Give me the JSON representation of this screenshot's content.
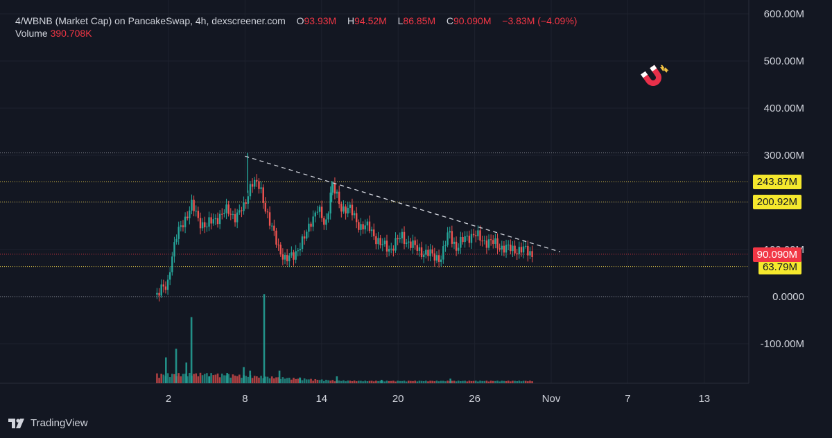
{
  "header": {
    "title": "4/WBNB (Market Cap) on PancakeSwap, 4h, dexscreener.com",
    "open_label": "O",
    "open_value": "93.93M",
    "high_label": "H",
    "high_value": "94.52M",
    "low_label": "L",
    "low_value": "86.85M",
    "close_label": "C",
    "close_value": "90.090M",
    "change": "−3.83M (−4.09%)",
    "volume_label": "Volume",
    "volume_value": "390.708K"
  },
  "brand": {
    "name": "TradingView"
  },
  "colors": {
    "background": "#131722",
    "up": "#26a69a",
    "down": "#ef5350",
    "level_line": "#f0d44a",
    "badge_yellow": "#f5e82d",
    "badge_red": "#f23645"
  },
  "icons": [
    "magnet-icon",
    "tradingview-logo-icon"
  ],
  "chart_data": {
    "type": "candlestick",
    "title": "4/WBNB (Market Cap) on PancakeSwap, 4h, dexscreener.com",
    "y_axis": {
      "ticks": [
        "600.00M",
        "500.00M",
        "400.00M",
        "300.00M",
        "100.00M",
        "0.0000",
        "-100.00M"
      ],
      "ylim": [
        -180,
        620
      ],
      "unit": "M"
    },
    "x_axis": {
      "ticks": [
        "2",
        "8",
        "14",
        "20",
        "26",
        "Nov",
        "7",
        "13"
      ],
      "tick_days": [
        2,
        8,
        14,
        20,
        26,
        32,
        38,
        44
      ],
      "xlim": [
        -2.6,
        50
      ]
    },
    "price_levels": [
      {
        "label": "243.87M",
        "value": 243.87,
        "color": "yellow"
      },
      {
        "label": "200.92M",
        "value": 200.92,
        "color": "yellow"
      },
      {
        "label": "63.79M",
        "value": 63.79,
        "color": "yellow"
      },
      {
        "label": "90.090M",
        "value": 90.09,
        "color": "red"
      },
      {
        "value": 0,
        "color": "gray"
      },
      {
        "value": 305,
        "color": "gray"
      }
    ],
    "trendline": {
      "x": [
        8,
        32.7
      ],
      "y": [
        298,
        95
      ]
    },
    "price_path": [
      [
        1,
        4
      ],
      [
        1.5,
        15
      ],
      [
        1.9,
        20
      ],
      [
        2.2,
        80
      ],
      [
        2.6,
        125
      ],
      [
        3.2,
        160
      ],
      [
        3.8,
        195
      ],
      [
        4.4,
        160
      ],
      [
        5.0,
        150
      ],
      [
        5.8,
        168
      ],
      [
        6.6,
        182
      ],
      [
        7.3,
        170
      ],
      [
        7.9,
        188
      ],
      [
        8.5,
        245
      ],
      [
        9.2,
        230
      ],
      [
        10.0,
        150
      ],
      [
        10.6,
        108
      ],
      [
        11.2,
        74
      ],
      [
        11.8,
        90
      ],
      [
        12.6,
        118
      ],
      [
        13.2,
        165
      ],
      [
        13.7,
        185
      ],
      [
        14.3,
        150
      ],
      [
        14.8,
        238
      ],
      [
        15.5,
        190
      ],
      [
        16.2,
        185
      ],
      [
        17.0,
        150
      ],
      [
        17.8,
        145
      ],
      [
        18.6,
        110
      ],
      [
        19.4,
        102
      ],
      [
        20.3,
        128
      ],
      [
        21.1,
        108
      ],
      [
        21.9,
        95
      ],
      [
        22.6,
        88
      ],
      [
        23.4,
        82
      ],
      [
        24.0,
        140
      ],
      [
        24.6,
        100
      ],
      [
        25.3,
        128
      ],
      [
        26.0,
        130
      ],
      [
        26.8,
        118
      ],
      [
        27.6,
        112
      ],
      [
        28.4,
        102
      ],
      [
        29.2,
        100
      ],
      [
        30.0,
        98
      ],
      [
        30.6,
        90
      ]
    ],
    "volume": [
      {
        "x": 1.8,
        "v": 45
      },
      {
        "x": 2.6,
        "v": 60
      },
      {
        "x": 3.4,
        "v": 36
      },
      {
        "x": 3.8,
        "v": 115
      },
      {
        "x": 5.2,
        "v": 12
      },
      {
        "x": 6.6,
        "v": 18
      },
      {
        "x": 7.9,
        "v": 28
      },
      {
        "x": 8.4,
        "v": 22
      },
      {
        "x": 9.5,
        "v": 155
      },
      {
        "x": 10.7,
        "v": 22
      },
      {
        "x": 12.3,
        "v": 10
      },
      {
        "x": 15.2,
        "v": 12
      },
      {
        "x": 18.7,
        "v": 6
      },
      {
        "x": 24.1,
        "v": 8
      }
    ]
  }
}
